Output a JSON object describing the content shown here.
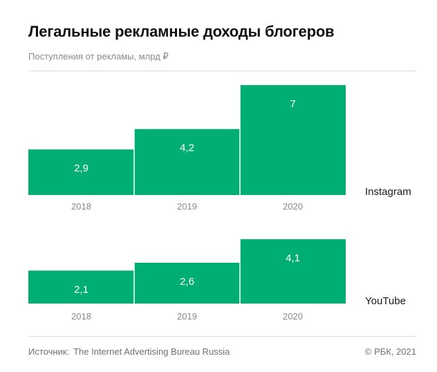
{
  "title": "Легальные рекламные доходы блогеров",
  "subtitle": "Поступления от рекламы, млрд ₽",
  "footer": {
    "source_label": "Источник:",
    "source": "The Internet Advertising Bureau Russia",
    "copyright": "© РБК, 2021"
  },
  "colors": {
    "bar": "#00ae73",
    "divider": "#ffffff"
  },
  "chart_data": [
    {
      "type": "bar",
      "series_label": "Instagram",
      "categories": [
        "2018",
        "2019",
        "2020"
      ],
      "values": [
        2.9,
        4.2,
        7
      ],
      "value_labels": [
        "2,9",
        "4,2",
        "7"
      ]
    },
    {
      "type": "bar",
      "series_label": "YouTube",
      "categories": [
        "2018",
        "2019",
        "2020"
      ],
      "values": [
        2.1,
        2.6,
        4.1
      ],
      "value_labels": [
        "2,1",
        "2,6",
        "4,1"
      ]
    }
  ]
}
